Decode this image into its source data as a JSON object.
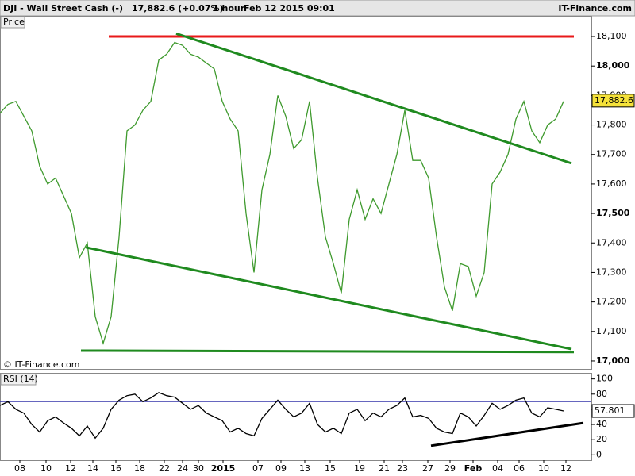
{
  "header": {
    "instrument": "DJI - Wall Street Cash (-)",
    "quote": "17,882.6 (+0.07%)",
    "interval": "1 hour",
    "timestamp": "Feb 12 2015 09:01",
    "brand": "IT-Finance.com"
  },
  "chart_data": [
    {
      "type": "line",
      "panel_label": "Price",
      "watermark": "© IT-Finance.com",
      "x": [
        0,
        1,
        2,
        3,
        4,
        5,
        6,
        7,
        8,
        9,
        10,
        11,
        12,
        13,
        14,
        15,
        16,
        17,
        18,
        19,
        20,
        21,
        22,
        23,
        24,
        25,
        26,
        27,
        28,
        29,
        30,
        31,
        32,
        33,
        34,
        35,
        36,
        37,
        38,
        39,
        40,
        41,
        42,
        43,
        44,
        45,
        46,
        47,
        48,
        49,
        50,
        51,
        52,
        53,
        54,
        55,
        56,
        57,
        58,
        59,
        60,
        61,
        62,
        63,
        64,
        65,
        66,
        67,
        68,
        69,
        70,
        71
      ],
      "series": [
        {
          "name": "DJI",
          "color": "#3f9a2e",
          "values": [
            17840,
            17870,
            17880,
            17830,
            17780,
            17660,
            17600,
            17620,
            17560,
            17500,
            17350,
            17400,
            17150,
            17060,
            17150,
            17420,
            17780,
            17800,
            17850,
            17880,
            18020,
            18040,
            18080,
            18070,
            18040,
            18030,
            18010,
            17990,
            17880,
            17820,
            17780,
            17500,
            17300,
            17580,
            17700,
            17900,
            17830,
            17720,
            17750,
            17880,
            17620,
            17420,
            17330,
            17230,
            17480,
            17580,
            17480,
            17550,
            17500,
            17600,
            17700,
            17850,
            17680,
            17680,
            17620,
            17420,
            17250,
            17170,
            17330,
            17320,
            17220,
            17300,
            17600,
            17640,
            17700,
            17820,
            17880,
            17780,
            17740,
            17800,
            17820,
            17880
          ]
        }
      ],
      "last_value": {
        "value": 17882.6,
        "label": "17,882.6"
      },
      "trendlines": [
        {
          "x1": 13.7,
          "y1": 18100,
          "x2": 72.3,
          "y2": 18100,
          "color": "#e8191a"
        },
        {
          "x1": 22.2,
          "y1": 18110,
          "x2": 72.0,
          "y2": 17670,
          "color": "#1f8a1f"
        },
        {
          "x1": 10.8,
          "y1": 17385,
          "x2": 72.0,
          "y2": 17040,
          "color": "#1f8a1f"
        },
        {
          "x1": 10.2,
          "y1": 17035,
          "x2": 72.3,
          "y2": 17030,
          "color": "#1f8a1f"
        }
      ],
      "xlim": [
        0,
        74.5
      ],
      "ylim": [
        16973,
        18170
      ],
      "xticks": [
        {
          "value": 2.5,
          "label": "08"
        },
        {
          "value": 5.8,
          "label": "10"
        },
        {
          "value": 8.9,
          "label": "12"
        },
        {
          "value": 11.7,
          "label": "14"
        },
        {
          "value": 14.6,
          "label": "16"
        },
        {
          "value": 17.6,
          "label": "18"
        },
        {
          "value": 20.7,
          "label": "22"
        },
        {
          "value": 23,
          "label": "24"
        },
        {
          "value": 25,
          "label": "30"
        },
        {
          "value": 28.1,
          "label": "2015"
        },
        {
          "value": 32.5,
          "label": "07"
        },
        {
          "value": 35.4,
          "label": "09"
        },
        {
          "value": 38.4,
          "label": "13"
        },
        {
          "value": 41.6,
          "label": "15"
        },
        {
          "value": 45.3,
          "label": "19"
        },
        {
          "value": 48.4,
          "label": "21"
        },
        {
          "value": 50.7,
          "label": "23"
        },
        {
          "value": 53.9,
          "label": "27"
        },
        {
          "value": 56.7,
          "label": "29"
        },
        {
          "value": 59.6,
          "label": "Feb"
        },
        {
          "value": 62.7,
          "label": "04"
        },
        {
          "value": 65.4,
          "label": "06"
        },
        {
          "value": 68.5,
          "label": "10"
        },
        {
          "value": 71.3,
          "label": "12"
        }
      ],
      "yticks": [
        {
          "value": 17000,
          "label": "17,000"
        },
        {
          "value": 17100,
          "label": "17,100"
        },
        {
          "value": 17200,
          "label": "17,200"
        },
        {
          "value": 17300,
          "label": "17,300"
        },
        {
          "value": 17400,
          "label": "17,400"
        },
        {
          "value": 17500,
          "label": "17,500"
        },
        {
          "value": 17600,
          "label": "17,600"
        },
        {
          "value": 17700,
          "label": "17,700"
        },
        {
          "value": 17800,
          "label": "17,800"
        },
        {
          "value": 17900,
          "label": "17,900"
        },
        {
          "value": 18000,
          "label": "18,000"
        },
        {
          "value": 18100,
          "label": "18,100"
        }
      ]
    },
    {
      "type": "line",
      "panel_label": "RSI (14)",
      "x": [
        0,
        1,
        2,
        3,
        4,
        5,
        6,
        7,
        8,
        9,
        10,
        11,
        12,
        13,
        14,
        15,
        16,
        17,
        18,
        19,
        20,
        21,
        22,
        23,
        24,
        25,
        26,
        27,
        28,
        29,
        30,
        31,
        32,
        33,
        34,
        35,
        36,
        37,
        38,
        39,
        40,
        41,
        42,
        43,
        44,
        45,
        46,
        47,
        48,
        49,
        50,
        51,
        52,
        53,
        54,
        55,
        56,
        57,
        58,
        59,
        60,
        61,
        62,
        63,
        64,
        65,
        66,
        67,
        68,
        69,
        70,
        71
      ],
      "series": [
        {
          "name": "RSI",
          "color": "#000000",
          "values": [
            65,
            70,
            60,
            55,
            40,
            30,
            45,
            50,
            42,
            35,
            25,
            38,
            22,
            35,
            60,
            72,
            78,
            80,
            70,
            75,
            82,
            78,
            76,
            68,
            60,
            65,
            55,
            50,
            45,
            30,
            35,
            28,
            25,
            48,
            60,
            72,
            60,
            50,
            55,
            68,
            40,
            30,
            35,
            28,
            55,
            60,
            45,
            55,
            50,
            60,
            65,
            75,
            50,
            52,
            48,
            35,
            30,
            28,
            55,
            50,
            38,
            52,
            68,
            60,
            65,
            72,
            75,
            55,
            50,
            62,
            60,
            57.801
          ]
        }
      ],
      "last_value": 57.801,
      "levels": [
        70,
        30
      ],
      "trendlines": [
        {
          "x1": 54.3,
          "y1": 12,
          "x2": 73.5,
          "y2": 42,
          "color": "#000000"
        }
      ],
      "xlim": [
        0,
        74.5
      ],
      "ylim": [
        -7,
        108
      ],
      "yticks": [
        0,
        20,
        40,
        60,
        80,
        100
      ]
    }
  ]
}
